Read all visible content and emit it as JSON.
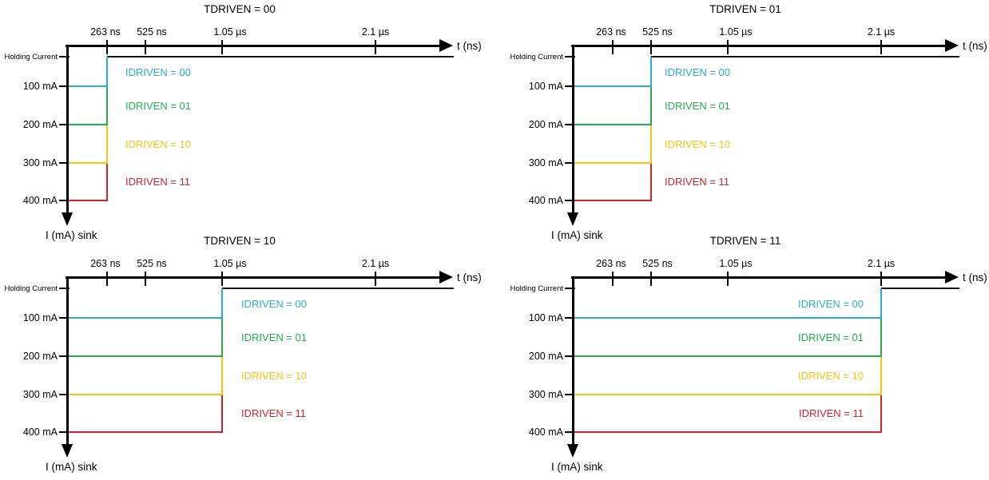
{
  "colors": {
    "idriven_00": "#29ABE2",
    "idriven_01": "#22B14C",
    "idriven_10": "#FFC20E",
    "idriven_11": "#D2232A",
    "axis": "#000000"
  },
  "axis": {
    "x_label": "t (ns)",
    "y_axis_label": "I (mA) sink",
    "x_tick_labels": [
      "263 ns",
      "525 ns",
      "1.05 µs",
      "2.1 µs"
    ],
    "y_tick_labels": [
      "Holding Current",
      "100 mA",
      "200 mA",
      "300 mA",
      "400 mA"
    ]
  },
  "series_labels": [
    {
      "label": "IDRIVEN = 00",
      "color": "#29ABE2"
    },
    {
      "label": "IDRIVEN = 01",
      "color": "#22B14C"
    },
    {
      "label": "IDRIVEN = 10",
      "color": "#FFC20E"
    },
    {
      "label": "IDRIVEN = 11",
      "color": "#D2232A"
    }
  ],
  "panels": [
    {
      "title": "TDRIVEN = 00",
      "drive_time": "263 ns"
    },
    {
      "title": "TDRIVEN = 01",
      "drive_time": "525 ns"
    },
    {
      "title": "TDRIVEN = 10",
      "drive_time": "1.05 µs"
    },
    {
      "title": "TDRIVEN = 11",
      "drive_time": "2.1 µs"
    }
  ],
  "chart_data": [
    {
      "type": "line",
      "title": "TDRIVEN = 00",
      "xlabel": "t (ns)",
      "ylabel": "I (mA) sink",
      "x_ticks_ns": [
        263,
        525,
        1050,
        2100
      ],
      "x_tick_labels": [
        "263 ns",
        "525 ns",
        "1.05 µs",
        "2.1 µs"
      ],
      "y_tick_labels": [
        "Holding Current",
        "100 mA",
        "200 mA",
        "300 mA",
        "400 mA"
      ],
      "y_axis_orientation": "inverted (sink current increases downward)",
      "drive_time_ns": 263,
      "series": [
        {
          "name": "IDRIVEN = 00",
          "color": "#29ABE2",
          "drive_current_mA": 100,
          "points_ns_mA": [
            [
              0,
              100
            ],
            [
              263,
              100
            ],
            [
              263,
              "holding"
            ]
          ]
        },
        {
          "name": "IDRIVEN = 01",
          "color": "#22B14C",
          "drive_current_mA": 200,
          "points_ns_mA": [
            [
              0,
              200
            ],
            [
              263,
              200
            ],
            [
              263,
              "holding"
            ]
          ]
        },
        {
          "name": "IDRIVEN = 10",
          "color": "#FFC20E",
          "drive_current_mA": 300,
          "points_ns_mA": [
            [
              0,
              300
            ],
            [
              263,
              300
            ],
            [
              263,
              "holding"
            ]
          ]
        },
        {
          "name": "IDRIVEN = 11",
          "color": "#D2232A",
          "drive_current_mA": 400,
          "points_ns_mA": [
            [
              0,
              400
            ],
            [
              263,
              400
            ],
            [
              263,
              "holding"
            ]
          ]
        }
      ]
    },
    {
      "type": "line",
      "title": "TDRIVEN = 01",
      "xlabel": "t (ns)",
      "ylabel": "I (mA) sink",
      "x_ticks_ns": [
        263,
        525,
        1050,
        2100
      ],
      "x_tick_labels": [
        "263 ns",
        "525 ns",
        "1.05 µs",
        "2.1 µs"
      ],
      "y_tick_labels": [
        "Holding Current",
        "100 mA",
        "200 mA",
        "300 mA",
        "400 mA"
      ],
      "y_axis_orientation": "inverted (sink current increases downward)",
      "drive_time_ns": 525,
      "series": [
        {
          "name": "IDRIVEN = 00",
          "color": "#29ABE2",
          "drive_current_mA": 100,
          "points_ns_mA": [
            [
              0,
              100
            ],
            [
              525,
              100
            ],
            [
              525,
              "holding"
            ]
          ]
        },
        {
          "name": "IDRIVEN = 01",
          "color": "#22B14C",
          "drive_current_mA": 200,
          "points_ns_mA": [
            [
              0,
              200
            ],
            [
              525,
              200
            ],
            [
              525,
              "holding"
            ]
          ]
        },
        {
          "name": "IDRIVEN = 10",
          "color": "#FFC20E",
          "drive_current_mA": 300,
          "points_ns_mA": [
            [
              0,
              300
            ],
            [
              525,
              300
            ],
            [
              525,
              "holding"
            ]
          ]
        },
        {
          "name": "IDRIVEN = 11",
          "color": "#D2232A",
          "drive_current_mA": 400,
          "points_ns_mA": [
            [
              0,
              400
            ],
            [
              525,
              400
            ],
            [
              525,
              "holding"
            ]
          ]
        }
      ]
    },
    {
      "type": "line",
      "title": "TDRIVEN = 10",
      "xlabel": "t (ns)",
      "ylabel": "I (mA) sink",
      "x_ticks_ns": [
        263,
        525,
        1050,
        2100
      ],
      "x_tick_labels": [
        "263 ns",
        "525 ns",
        "1.05 µs",
        "2.1 µs"
      ],
      "y_tick_labels": [
        "Holding Current",
        "100 mA",
        "200 mA",
        "300 mA",
        "400 mA"
      ],
      "y_axis_orientation": "inverted (sink current increases downward)",
      "drive_time_ns": 1050,
      "series": [
        {
          "name": "IDRIVEN = 00",
          "color": "#29ABE2",
          "drive_current_mA": 100,
          "points_ns_mA": [
            [
              0,
              100
            ],
            [
              1050,
              100
            ],
            [
              1050,
              "holding"
            ]
          ]
        },
        {
          "name": "IDRIVEN = 01",
          "color": "#22B14C",
          "drive_current_mA": 200,
          "points_ns_mA": [
            [
              0,
              200
            ],
            [
              1050,
              200
            ],
            [
              1050,
              "holding"
            ]
          ]
        },
        {
          "name": "IDRIVEN = 10",
          "color": "#FFC20E",
          "drive_current_mA": 300,
          "points_ns_mA": [
            [
              0,
              300
            ],
            [
              1050,
              300
            ],
            [
              1050,
              "holding"
            ]
          ]
        },
        {
          "name": "IDRIVEN = 11",
          "color": "#D2232A",
          "drive_current_mA": 400,
          "points_ns_mA": [
            [
              0,
              400
            ],
            [
              1050,
              400
            ],
            [
              1050,
              "holding"
            ]
          ]
        }
      ]
    },
    {
      "type": "line",
      "title": "TDRIVEN = 11",
      "xlabel": "t (ns)",
      "ylabel": "I (mA) sink",
      "x_ticks_ns": [
        263,
        525,
        1050,
        2100
      ],
      "x_tick_labels": [
        "263 ns",
        "525 ns",
        "1.05 µs",
        "2.1 µs"
      ],
      "y_tick_labels": [
        "Holding Current",
        "100 mA",
        "200 mA",
        "300 mA",
        "400 mA"
      ],
      "y_axis_orientation": "inverted (sink current increases downward)",
      "drive_time_ns": 2100,
      "series": [
        {
          "name": "IDRIVEN = 00",
          "color": "#29ABE2",
          "drive_current_mA": 100,
          "points_ns_mA": [
            [
              0,
              100
            ],
            [
              2100,
              100
            ],
            [
              2100,
              "holding"
            ]
          ]
        },
        {
          "name": "IDRIVEN = 01",
          "color": "#22B14C",
          "drive_current_mA": 200,
          "points_ns_mA": [
            [
              0,
              200
            ],
            [
              2100,
              200
            ],
            [
              2100,
              "holding"
            ]
          ]
        },
        {
          "name": "IDRIVEN = 10",
          "color": "#FFC20E",
          "drive_current_mA": 300,
          "points_ns_mA": [
            [
              0,
              300
            ],
            [
              2100,
              300
            ],
            [
              2100,
              "holding"
            ]
          ]
        },
        {
          "name": "IDRIVEN = 11",
          "color": "#D2232A",
          "drive_current_mA": 400,
          "points_ns_mA": [
            [
              0,
              400
            ],
            [
              2100,
              400
            ],
            [
              2100,
              "holding"
            ]
          ]
        }
      ]
    }
  ]
}
